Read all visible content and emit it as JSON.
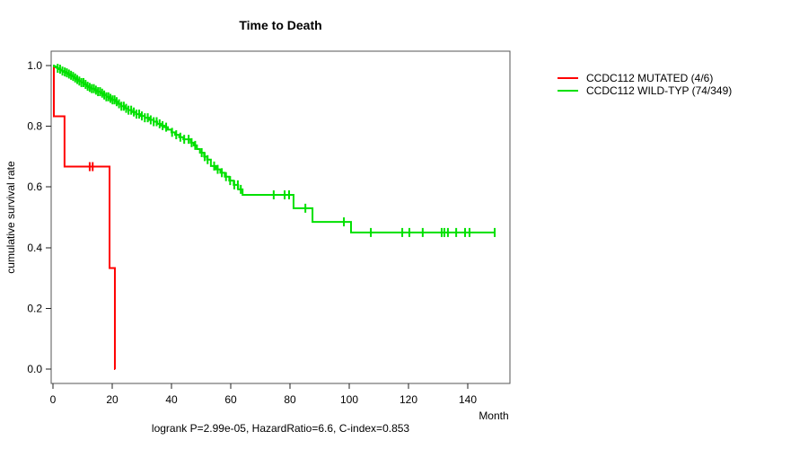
{
  "title": "Time to Death",
  "annotation": "logrank P=2.99e-05, HazardRatio=6.6, C-index=0.853",
  "axes": {
    "x_label": "Month",
    "y_label": "cumulative survival rate",
    "x_tick_labels": [
      "0",
      "20",
      "40",
      "60",
      "80",
      "100",
      "120",
      "140"
    ],
    "y_tick_labels": [
      "0.0",
      "0.2",
      "0.4",
      "0.6",
      "0.8",
      "1.0"
    ]
  },
  "legend": [
    {
      "label": "CCDC112 MUTATED (4/6)",
      "color": "#ff0000"
    },
    {
      "label": "CCDC112 WILD-TYP (74/349)",
      "color": "#00e000"
    }
  ],
  "chart_data": {
    "type": "line",
    "subtype": "kaplan-meier-step",
    "title": "Time to Death",
    "xlabel": "Month",
    "ylabel": "cumulative survival rate",
    "xlim": [
      0,
      154
    ],
    "ylim": [
      0,
      1
    ],
    "x_ticks": [
      0,
      20,
      40,
      60,
      80,
      100,
      120,
      140
    ],
    "y_ticks": [
      0.0,
      0.2,
      0.4,
      0.6,
      0.8,
      1.0
    ],
    "grid": false,
    "legend_position": "right-outside",
    "annotation": "logrank P=2.99e-05, HazardRatio=6.6, C-index=0.853",
    "frame_color": "#555555",
    "series": [
      {
        "name": "CCDC112 MUTATED (4/6)",
        "color": "#ff0000",
        "end_month": 21,
        "points": [
          [
            0,
            1.0
          ],
          [
            0.3,
            0.833
          ],
          [
            3.9,
            0.667
          ],
          [
            19.1,
            0.333
          ],
          [
            20.9,
            0.0
          ]
        ],
        "censors": [
          12.4,
          13.4
        ]
      },
      {
        "name": "CCDC112 WILD-TYP (74/349)",
        "color": "#00e000",
        "end_month": 149.1,
        "points": [
          [
            0,
            1.0
          ],
          [
            0.4,
            0.997
          ],
          [
            0.9,
            0.994
          ],
          [
            1.4,
            0.991
          ],
          [
            1.9,
            0.988
          ],
          [
            2.5,
            0.985
          ],
          [
            3.1,
            0.982
          ],
          [
            3.7,
            0.979
          ],
          [
            4.3,
            0.976
          ],
          [
            5.0,
            0.972
          ],
          [
            5.7,
            0.968
          ],
          [
            6.4,
            0.964
          ],
          [
            7.2,
            0.959
          ],
          [
            8.0,
            0.954
          ],
          [
            8.8,
            0.949
          ],
          [
            9.6,
            0.944
          ],
          [
            10.4,
            0.938
          ],
          [
            11.2,
            0.932
          ],
          [
            12.0,
            0.928
          ],
          [
            13.0,
            0.924
          ],
          [
            14.0,
            0.919
          ],
          [
            15.0,
            0.914
          ],
          [
            16.0,
            0.909
          ],
          [
            17.0,
            0.903
          ],
          [
            18.0,
            0.897
          ],
          [
            19.0,
            0.892
          ],
          [
            20.0,
            0.887
          ],
          [
            21.0,
            0.881
          ],
          [
            22.0,
            0.874
          ],
          [
            23.0,
            0.866
          ],
          [
            24.2,
            0.859
          ],
          [
            25.4,
            0.853
          ],
          [
            26.6,
            0.847
          ],
          [
            28.0,
            0.84
          ],
          [
            29.5,
            0.834
          ],
          [
            31.0,
            0.828
          ],
          [
            32.5,
            0.821
          ],
          [
            34.0,
            0.815
          ],
          [
            35.2,
            0.808
          ],
          [
            36.4,
            0.802
          ],
          [
            37.6,
            0.797
          ],
          [
            38.8,
            0.789
          ],
          [
            40.0,
            0.78
          ],
          [
            41.2,
            0.772
          ],
          [
            42.6,
            0.764
          ],
          [
            44.0,
            0.757
          ],
          [
            46.5,
            0.746
          ],
          [
            47.5,
            0.737
          ],
          [
            48.6,
            0.725
          ],
          [
            49.6,
            0.713
          ],
          [
            51.0,
            0.7
          ],
          [
            52.0,
            0.69
          ],
          [
            53.3,
            0.669
          ],
          [
            55.0,
            0.658
          ],
          [
            56.5,
            0.647
          ],
          [
            58.0,
            0.634
          ],
          [
            59.5,
            0.621
          ],
          [
            61.0,
            0.607
          ],
          [
            62.5,
            0.592
          ],
          [
            64.0,
            0.574
          ],
          [
            81.2,
            0.53
          ],
          [
            87.6,
            0.485
          ],
          [
            100.6,
            0.45
          ]
        ],
        "censors": [
          1.6,
          2.4,
          3.2,
          4.0,
          4.7,
          5.4,
          6.1,
          6.8,
          7.5,
          8.2,
          8.9,
          9.6,
          10.3,
          11.0,
          11.7,
          12.4,
          13.1,
          13.8,
          14.5,
          15.2,
          15.9,
          16.6,
          17.3,
          18.0,
          18.7,
          19.4,
          20.1,
          20.8,
          21.5,
          22.3,
          23.1,
          23.9,
          24.7,
          25.5,
          26.4,
          27.3,
          28.2,
          29.1,
          30.0,
          31.0,
          32.0,
          33.0,
          34.0,
          35.0,
          36.0,
          37.0,
          38.2,
          40.2,
          41.6,
          43.0,
          44.3,
          45.8,
          46.8,
          48.0,
          50.2,
          51.2,
          52.2,
          54.4,
          55.6,
          57.0,
          58.4,
          59.8,
          61.2,
          62.4,
          63.4,
          74.5,
          78.2,
          79.7,
          85.2,
          98.2,
          107.3,
          117.9,
          120.3,
          124.8,
          131.2,
          132.1,
          133.3,
          136.1,
          139.1,
          140.6,
          149.1
        ]
      }
    ]
  }
}
